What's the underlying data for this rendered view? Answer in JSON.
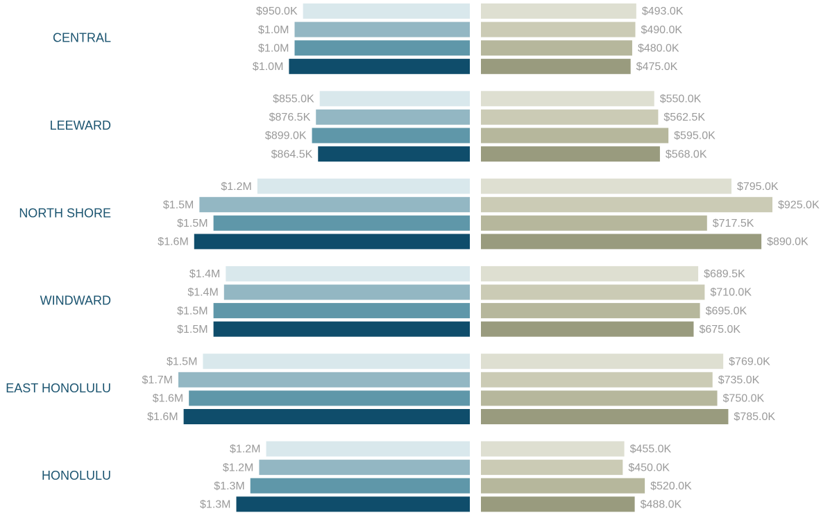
{
  "chart_data": [
    {
      "type": "bar",
      "orientation": "horizontal",
      "x_reversed": true,
      "categories": [
        "CENTRAL",
        "LEEWARD",
        "NORTH SHORE",
        "WINDWARD",
        "EAST HONOLULU",
        "HONOLULU"
      ],
      "series": [
        {
          "color": "#d9e8ec",
          "values": [
            950000,
            855000,
            1210000,
            1390000,
            1520000,
            1160000
          ],
          "value_labels": [
            "$950.0K",
            "$855.0K",
            "$1.2M",
            "$1.4M",
            "$1.5M",
            "$1.2M"
          ]
        },
        {
          "color": "#93b7c3",
          "values": [
            998000,
            876500,
            1540000,
            1400000,
            1660000,
            1200000
          ],
          "value_labels": [
            "$1.0M",
            "$876.5K",
            "$1.5M",
            "$1.4M",
            "$1.7M",
            "$1.2M"
          ]
        },
        {
          "color": "#5f97a9",
          "values": [
            998000,
            899000,
            1460000,
            1460000,
            1600000,
            1250000
          ],
          "value_labels": [
            "$1.0M",
            "$899.0K",
            "$1.5M",
            "$1.5M",
            "$1.6M",
            "$1.3M"
          ]
        },
        {
          "color": "#0f4d6b",
          "values": [
            1030000,
            864500,
            1570000,
            1460000,
            1630000,
            1330000
          ],
          "value_labels": [
            "$1.0M",
            "$864.5K",
            "$1.6M",
            "$1.5M",
            "$1.6M",
            "$1.3M"
          ]
        }
      ]
    },
    {
      "type": "bar",
      "orientation": "horizontal",
      "x_reversed": false,
      "series": [
        {
          "color": "#dedfd1",
          "values": [
            493000,
            550000,
            795000,
            689500,
            769000,
            455000
          ],
          "value_labels": [
            "$493.0K",
            "$550.0K",
            "$795.0K",
            "$689.5K",
            "$769.0K",
            "$455.0K"
          ]
        },
        {
          "color": "#cbcbb5",
          "values": [
            490000,
            562500,
            925000,
            710000,
            735000,
            450000
          ],
          "value_labels": [
            "$490.0K",
            "$562.5K",
            "$925.0K",
            "$710.0K",
            "$735.0K",
            "$450.0K"
          ]
        },
        {
          "color": "#b6b79c",
          "values": [
            480000,
            595000,
            717500,
            695000,
            750000,
            520000
          ],
          "value_labels": [
            "$480.0K",
            "$595.0K",
            "$717.5K",
            "$695.0K",
            "$750.0K",
            "$520.0K"
          ]
        },
        {
          "color": "#999b7e",
          "values": [
            475000,
            568000,
            890000,
            675000,
            785000,
            488000
          ],
          "value_labels": [
            "$475.0K",
            "$568.0K",
            "$890.0K",
            "$675.0K",
            "$785.0K",
            "$488.0K"
          ]
        }
      ]
    }
  ]
}
